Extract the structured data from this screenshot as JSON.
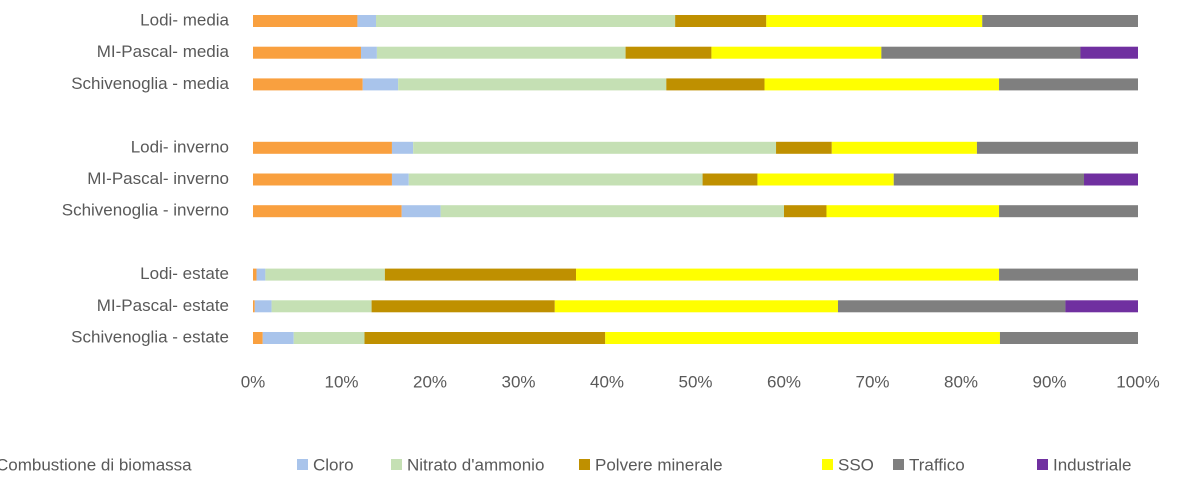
{
  "chart_data": {
    "type": "stacked_barh",
    "categories": [
      "Lodi- media",
      "MI-Pascal- media",
      "Schivenoglia - media",
      null,
      "Lodi- inverno",
      "MI-Pascal- inverno",
      "Schivenoglia - inverno",
      null,
      "Lodi- estate",
      "MI-Pascal- estate",
      "Schivenoglia - estate"
    ],
    "series": [
      {
        "name": "Combustione di biomassa",
        "color": "#f9a03f",
        "values": [
          11.8,
          12.2,
          12.4,
          null,
          15.7,
          15.7,
          16.8,
          null,
          0.4,
          0.2,
          1.1
        ]
      },
      {
        "name": "Cloro",
        "color": "#a9c4eb",
        "values": [
          2.1,
          1.8,
          4.0,
          null,
          2.4,
          1.9,
          4.4,
          null,
          1.0,
          1.9,
          3.5
        ]
      },
      {
        "name": "Nitrato d'ammonio",
        "color": "#c5e0b4",
        "values": [
          33.8,
          28.1,
          30.3,
          null,
          41.0,
          33.2,
          38.8,
          null,
          13.5,
          11.3,
          8.0
        ]
      },
      {
        "name": "Polvere minerale",
        "color": "#bf9000",
        "values": [
          10.3,
          9.7,
          11.1,
          null,
          6.3,
          6.2,
          4.8,
          null,
          21.6,
          20.7,
          27.2
        ]
      },
      {
        "name": "SSO",
        "color": "#ffff00",
        "values": [
          24.4,
          19.2,
          26.5,
          null,
          16.4,
          15.4,
          19.5,
          null,
          47.8,
          32.0,
          44.6
        ]
      },
      {
        "name": "Traffico",
        "color": "#7f7f7f",
        "values": [
          17.6,
          22.5,
          15.7,
          null,
          18.2,
          21.5,
          15.7,
          null,
          15.7,
          25.7,
          15.6
        ]
      },
      {
        "name": "Industriale",
        "color": "#7030a0",
        "values": [
          0,
          6.5,
          0,
          null,
          0,
          6.1,
          0,
          null,
          0,
          8.2,
          0
        ]
      }
    ],
    "xlim": [
      0,
      100
    ],
    "xticks": [
      {
        "value": 0,
        "label": "0%"
      },
      {
        "value": 10,
        "label": "10%"
      },
      {
        "value": 20,
        "label": "20%"
      },
      {
        "value": 30,
        "label": "30%"
      },
      {
        "value": 40,
        "label": "40%"
      },
      {
        "value": 50,
        "label": "50%"
      },
      {
        "value": 60,
        "label": "60%"
      },
      {
        "value": 70,
        "label": "70%"
      },
      {
        "value": 80,
        "label": "80%"
      },
      {
        "value": 90,
        "label": "90%"
      },
      {
        "value": 100,
        "label": "100%"
      }
    ],
    "legend": "bottom"
  }
}
